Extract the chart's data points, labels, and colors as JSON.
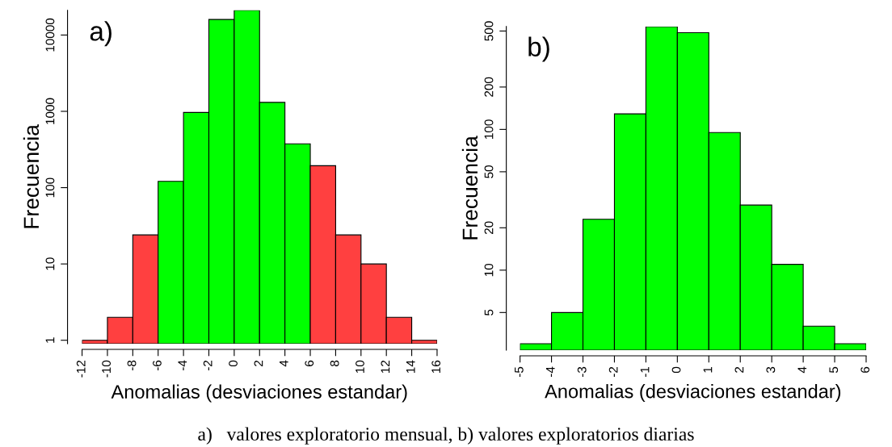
{
  "chart_data": [
    {
      "type": "histogram",
      "bins": [
        -12,
        -10,
        -8,
        -6,
        -4,
        -2,
        0,
        2,
        4,
        6,
        8,
        10,
        12,
        14,
        16
      ],
      "values": [
        1,
        2,
        24,
        121,
        966,
        16000,
        21100,
        1310,
        375,
        194,
        24,
        10,
        2,
        1
      ],
      "colors": [
        "#ff4040",
        "#ff4040",
        "#ff4040",
        "#00ff00",
        "#00ff00",
        "#00ff00",
        "#00ff00",
        "#00ff00",
        "#00ff00",
        "#ff4040",
        "#ff4040",
        "#ff4040",
        "#ff4040",
        "#ff4040"
      ],
      "log": "y",
      "xlim": [
        -12,
        16
      ],
      "ylim": [
        0.9,
        21100
      ],
      "xticks": [
        -12,
        -10,
        -8,
        -6,
        -4,
        -2,
        0,
        2,
        4,
        6,
        8,
        10,
        12,
        14,
        16
      ],
      "yticks": [
        1,
        10,
        100,
        1000,
        10000
      ],
      "xlabel": "Anomalias (desviaciones estandar)",
      "ylabel": "Frecuencia",
      "grid": false,
      "legend": false,
      "annotations": [
        "a)",
        "a)   valores exploratorio mensual, b) valores exploratorios diarias"
      ]
    },
    {
      "type": "histogram",
      "bins": [
        -5,
        -4,
        -3,
        -2,
        -1,
        0,
        1,
        2,
        3,
        4,
        5,
        6
      ],
      "values": [
        3,
        5,
        23,
        129,
        538,
        487,
        95,
        29,
        11,
        4,
        3
      ],
      "colors": [
        "#00ff00",
        "#00ff00",
        "#00ff00",
        "#00ff00",
        "#00ff00",
        "#00ff00",
        "#00ff00",
        "#00ff00",
        "#00ff00",
        "#00ff00",
        "#00ff00"
      ],
      "log": "y",
      "xlim": [
        -5,
        6
      ],
      "ylim": [
        2.7,
        538
      ],
      "xticks": [
        -5,
        -4,
        -3,
        -2,
        -1,
        0,
        1,
        2,
        3,
        4,
        5,
        6
      ],
      "yticks": [
        5,
        10,
        20,
        50,
        100,
        200,
        500
      ],
      "xlabel": "Anomalias (desviaciones estandar)",
      "ylabel": "Frecuencia",
      "grid": false,
      "legend": false,
      "annotations": [
        "b)"
      ]
    }
  ]
}
